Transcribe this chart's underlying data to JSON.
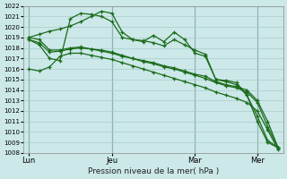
{
  "title": "",
  "xlabel": "Pression niveau de la mer( hPa )",
  "ylim": [
    1008,
    1022
  ],
  "yticks": [
    1008,
    1009,
    1010,
    1011,
    1012,
    1013,
    1014,
    1015,
    1016,
    1017,
    1018,
    1019,
    1020,
    1021,
    1022
  ],
  "xtick_labels": [
    "Lun",
    "Jeu",
    "Mar",
    "Mer"
  ],
  "xtick_positions": [
    0,
    8,
    16,
    22
  ],
  "background_color": "#cce8e8",
  "grid_color": "#aacccc",
  "line_color": "#1a6b1a",
  "n_points": 25,
  "series": [
    [
      1019.0,
      1019.3,
      1019.6,
      1019.8,
      1020.1,
      1020.5,
      1021.0,
      1021.5,
      1021.3,
      1019.5,
      1018.8,
      1018.6,
      1019.2,
      1018.6,
      1019.5,
      1018.8,
      1017.5,
      1017.2,
      1015.0,
      1014.8,
      1014.5,
      1013.5,
      1011.0,
      1009.0,
      1008.5
    ],
    [
      1018.8,
      1018.3,
      1017.0,
      1016.8,
      1020.8,
      1021.3,
      1021.2,
      1021.0,
      1020.5,
      1019.0,
      1018.8,
      1018.7,
      1018.5,
      1018.2,
      1018.8,
      1018.3,
      1017.8,
      1017.4,
      1015.0,
      1014.9,
      1014.7,
      1013.5,
      1011.5,
      1009.2,
      1008.5
    ],
    [
      1019.0,
      1018.8,
      1017.8,
      1017.8,
      1018.0,
      1018.1,
      1017.9,
      1017.8,
      1017.6,
      1017.3,
      1017.0,
      1016.8,
      1016.6,
      1016.3,
      1016.1,
      1015.8,
      1015.5,
      1015.3,
      1014.8,
      1014.5,
      1014.3,
      1014.0,
      1013.0,
      1011.0,
      1008.5
    ],
    [
      1018.8,
      1018.5,
      1017.6,
      1017.7,
      1017.9,
      1018.0,
      1017.9,
      1017.7,
      1017.5,
      1017.2,
      1017.0,
      1016.7,
      1016.5,
      1016.2,
      1016.0,
      1015.7,
      1015.4,
      1015.1,
      1014.7,
      1014.4,
      1014.2,
      1013.8,
      1012.8,
      1010.5,
      1008.5
    ],
    [
      1016.0,
      1015.8,
      1016.2,
      1017.2,
      1017.5,
      1017.5,
      1017.3,
      1017.1,
      1016.9,
      1016.6,
      1016.3,
      1016.0,
      1015.7,
      1015.4,
      1015.1,
      1014.8,
      1014.5,
      1014.2,
      1013.8,
      1013.5,
      1013.2,
      1012.8,
      1012.0,
      1010.2,
      1008.3
    ]
  ]
}
